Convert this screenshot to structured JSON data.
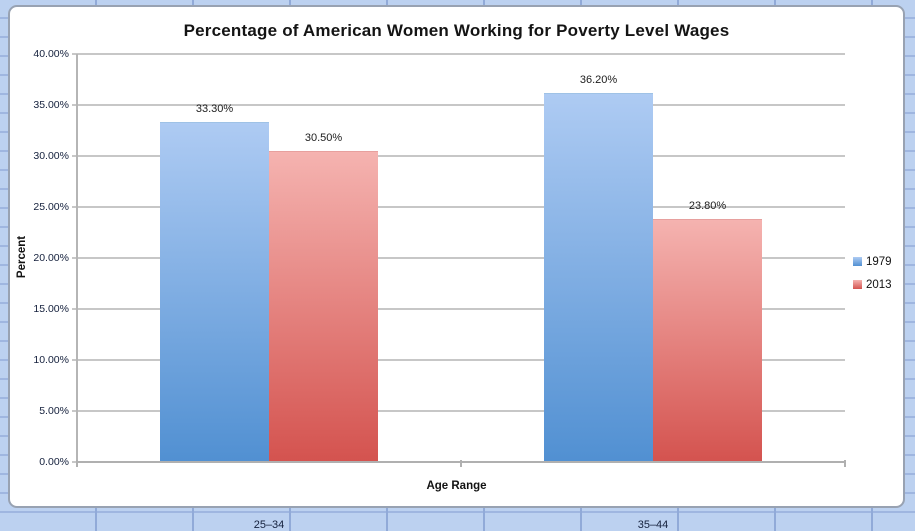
{
  "window": {
    "background_color": "#bcd1f0",
    "frame_border_color": "#98a2b2",
    "gridline_color": "#c7c7c7",
    "axis_line_color": "#b0b0b0"
  },
  "chart_data": {
    "type": "bar",
    "title": "Percentage of American Women Working for Poverty Level Wages",
    "xlabel": "Age Range",
    "ylabel": "Percent",
    "categories": [
      "25–34",
      "35–44"
    ],
    "series": [
      {
        "name": "1979",
        "values": [
          33.3,
          36.2
        ],
        "data_labels": [
          "33.30%",
          "36.20%"
        ],
        "color_top": "#aecbf3",
        "color_bottom": "#5190d2"
      },
      {
        "name": "2013",
        "values": [
          30.5,
          23.8
        ],
        "data_labels": [
          "30.50%",
          "23.80%"
        ],
        "color_top": "#f5b3b0",
        "color_bottom": "#d4534f"
      }
    ],
    "ylim": [
      0,
      40
    ],
    "ytick_step": 5,
    "ytick_labels": [
      "0.00%",
      "5.00%",
      "10.00%",
      "15.00%",
      "20.00%",
      "25.00%",
      "30.00%",
      "35.00%",
      "40.00%"
    ],
    "grid": "on",
    "legend_position": "right"
  }
}
